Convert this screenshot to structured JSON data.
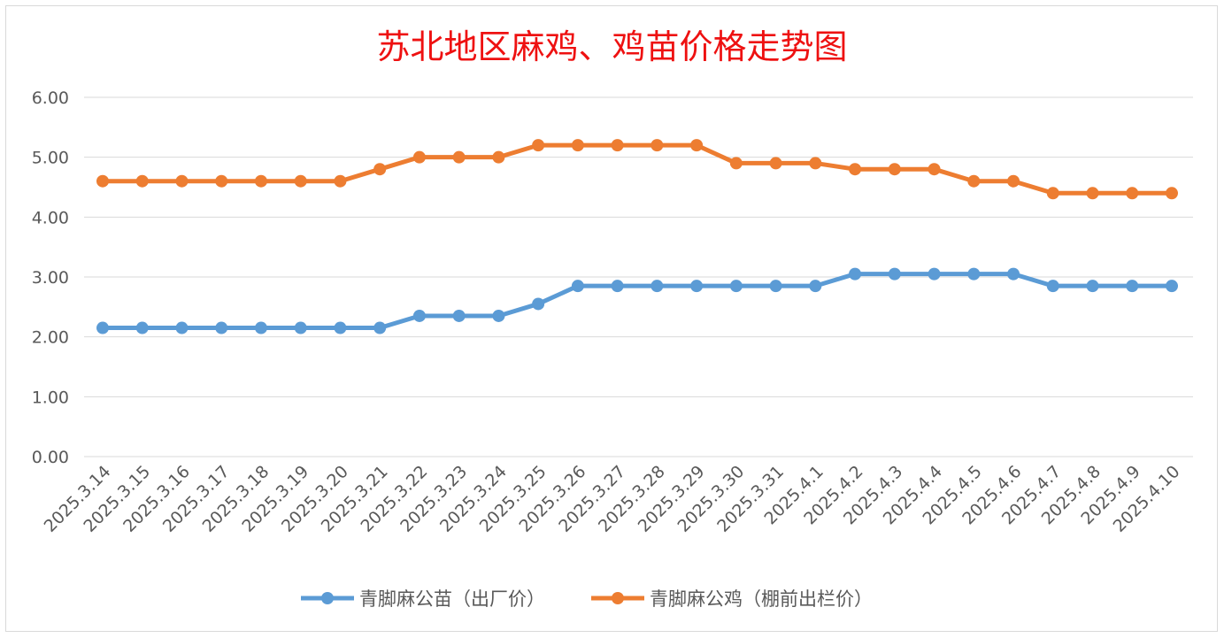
{
  "chart_data": {
    "type": "line",
    "title": "苏北地区麻鸡、鸡苗价格走势图",
    "categories": [
      "2025.3.14",
      "2025.3.15",
      "2025.3.16",
      "2025.3.17",
      "2025.3.18",
      "2025.3.19",
      "2025.3.20",
      "2025.3.21",
      "2025.3.22",
      "2025.3.23",
      "2025.3.24",
      "2025.3.25",
      "2025.3.26",
      "2025.3.27",
      "2025.3.28",
      "2025.3.29",
      "2025.3.30",
      "2025.3.31",
      "2025.4.1",
      "2025.4.2",
      "2025.4.3",
      "2025.4.4",
      "2025.4.5",
      "2025.4.6",
      "2025.4.7",
      "2025.4.8",
      "2025.4.9",
      "2025.4.10"
    ],
    "series": [
      {
        "name": "青脚麻公苗（出厂价）",
        "color": "#5b9bd5",
        "values": [
          2.15,
          2.15,
          2.15,
          2.15,
          2.15,
          2.15,
          2.15,
          2.15,
          2.35,
          2.35,
          2.35,
          2.55,
          2.85,
          2.85,
          2.85,
          2.85,
          2.85,
          2.85,
          2.85,
          3.05,
          3.05,
          3.05,
          3.05,
          3.05,
          2.85,
          2.85,
          2.85,
          2.85
        ]
      },
      {
        "name": "青脚麻公鸡（棚前出栏价）",
        "color": "#ed7d31",
        "values": [
          4.6,
          4.6,
          4.6,
          4.6,
          4.6,
          4.6,
          4.6,
          4.8,
          5.0,
          5.0,
          5.0,
          5.2,
          5.2,
          5.2,
          5.2,
          5.2,
          4.9,
          4.9,
          4.9,
          4.8,
          4.8,
          4.8,
          4.6,
          4.6,
          4.4,
          4.4,
          4.4,
          4.4
        ]
      }
    ],
    "yticks": [
      "0.00",
      "1.00",
      "2.00",
      "3.00",
      "4.00",
      "5.00",
      "6.00"
    ],
    "ylim": [
      0,
      6
    ],
    "grid": true,
    "legend": "bottom"
  }
}
